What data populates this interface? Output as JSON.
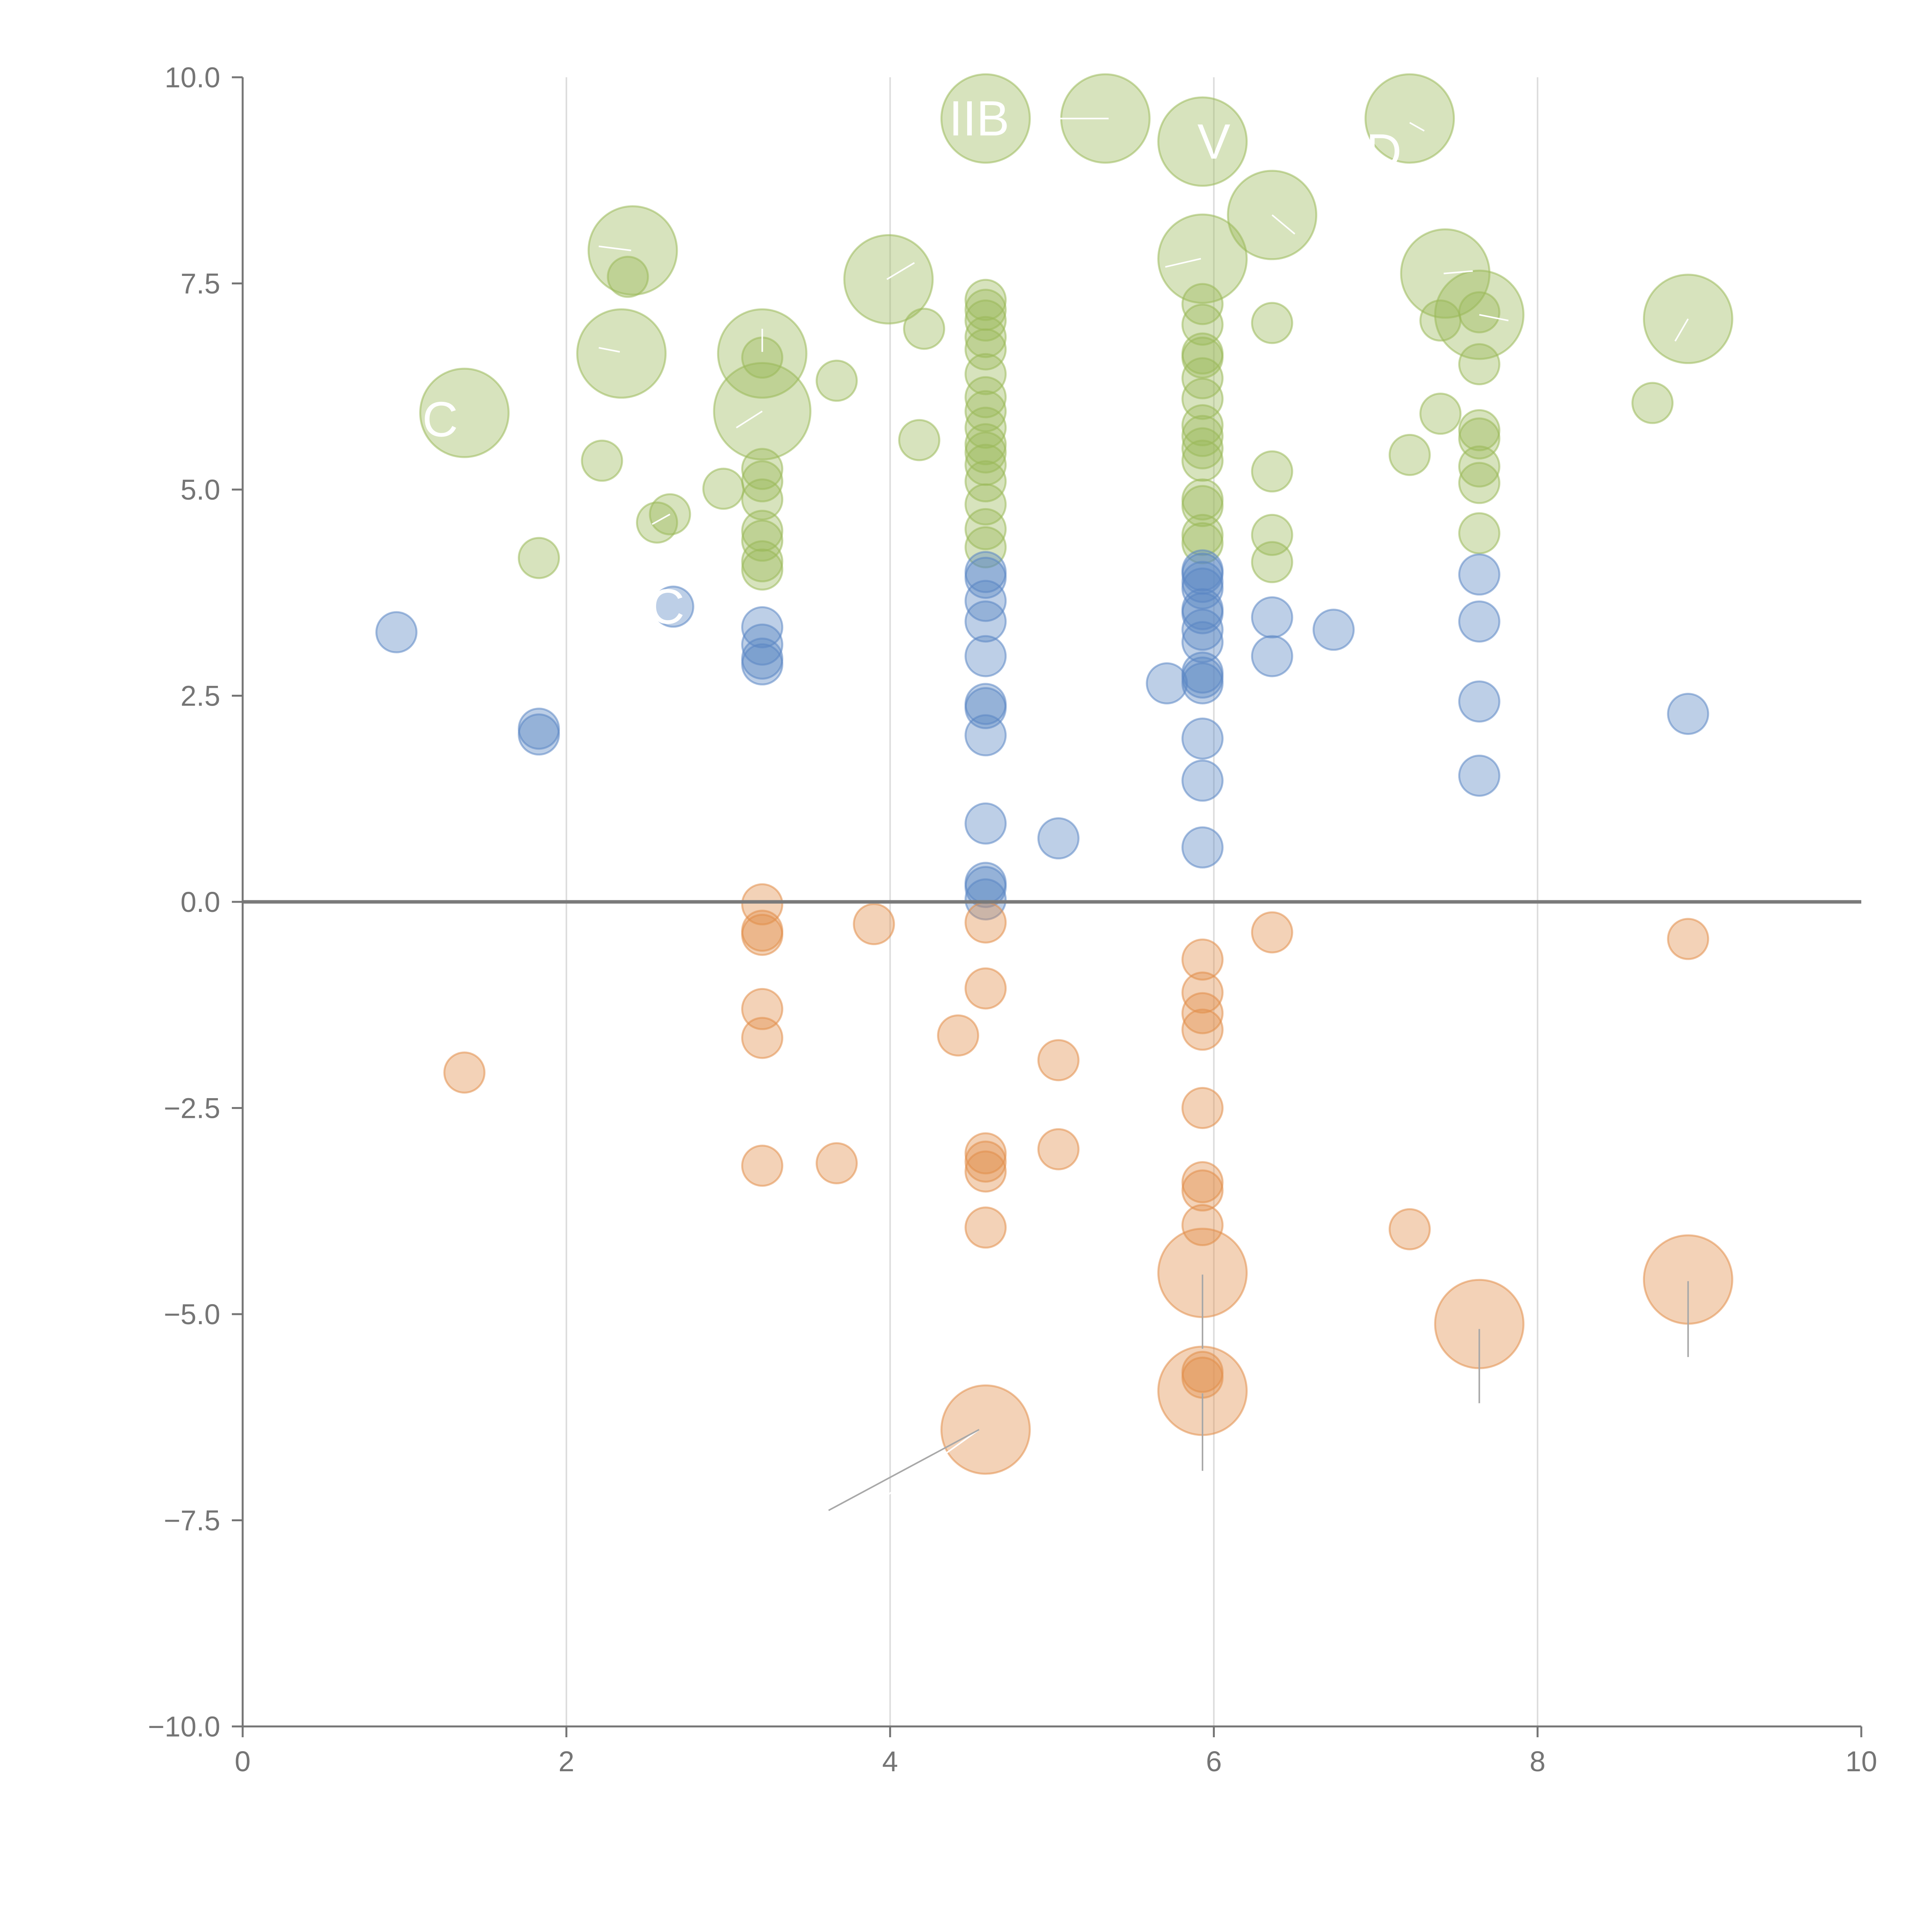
{
  "chart_data": {
    "type": "scatter",
    "title": "",
    "xlabel": "",
    "ylabel": "",
    "xlim": [
      0,
      10
    ],
    "ylim": [
      -10,
      10
    ],
    "x_ticks": [
      0,
      2,
      4,
      6,
      8,
      10
    ],
    "x_tick_labels": [
      "0",
      "2",
      "4",
      "6",
      "8",
      "10"
    ],
    "y_ticks": [
      -10,
      -7.5,
      -5,
      -2.5,
      0,
      2.5,
      5,
      7.5,
      10
    ],
    "y_tick_labels": [
      "−10.0",
      "−7.5",
      "−5.0",
      "−2.5",
      "0.0",
      "2.5",
      "5.0",
      "7.5",
      "10.0"
    ],
    "grid": {
      "x": [
        2,
        4,
        6,
        8
      ],
      "y": false
    },
    "zero_line": 0,
    "legend": "none",
    "colors": {
      "green": "#9aba59",
      "blue": "#5b86c4",
      "orange": "#e18e4b",
      "axis": "#757575",
      "grid": "#dcdcdc",
      "zero": "#7a7a7a",
      "label": "#ffffff"
    },
    "series": [
      {
        "name": "green",
        "color": "#9aba59",
        "points": [
          {
            "x": 1.37,
            "y": 5.93,
            "size": 2.2,
            "label": "C",
            "lx": 1.22,
            "ly": 5.85
          },
          {
            "x": 1.83,
            "y": 4.17,
            "size": 1
          },
          {
            "x": 2.22,
            "y": 5.35,
            "size": 1
          },
          {
            "x": 2.34,
            "y": 6.65,
            "size": 2.2
          },
          {
            "x": 2.38,
            "y": 7.58,
            "size": 1
          },
          {
            "x": 2.41,
            "y": 7.9,
            "size": 2.2
          },
          {
            "x": 2.56,
            "y": 4.6,
            "size": 1
          },
          {
            "x": 2.64,
            "y": 4.7,
            "size": 1
          },
          {
            "x": 2.97,
            "y": 5.01,
            "size": 1
          },
          {
            "x": 3.21,
            "y": 4.03,
            "size": 1
          },
          {
            "x": 3.21,
            "y": 4.13,
            "size": 1
          },
          {
            "x": 3.21,
            "y": 4.38,
            "size": 1
          },
          {
            "x": 3.21,
            "y": 4.5,
            "size": 1
          },
          {
            "x": 3.21,
            "y": 4.88,
            "size": 1
          },
          {
            "x": 3.21,
            "y": 5.1,
            "size": 1
          },
          {
            "x": 3.21,
            "y": 5.25,
            "size": 1
          },
          {
            "x": 3.21,
            "y": 5.95,
            "size": 2.4
          },
          {
            "x": 3.21,
            "y": 6.6,
            "size": 1
          },
          {
            "x": 3.21,
            "y": 6.65,
            "size": 2.2
          },
          {
            "x": 3.67,
            "y": 6.32,
            "size": 1
          },
          {
            "x": 3.99,
            "y": 7.55,
            "size": 2.2
          },
          {
            "x": 4.18,
            "y": 5.6,
            "size": 1
          },
          {
            "x": 4.21,
            "y": 6.95,
            "size": 1
          },
          {
            "x": 4.59,
            "y": 4.3,
            "size": 1
          },
          {
            "x": 4.59,
            "y": 4.52,
            "size": 1
          },
          {
            "x": 4.59,
            "y": 4.82,
            "size": 1
          },
          {
            "x": 4.59,
            "y": 5.1,
            "size": 1
          },
          {
            "x": 4.59,
            "y": 5.3,
            "size": 1
          },
          {
            "x": 4.59,
            "y": 5.45,
            "size": 1
          },
          {
            "x": 4.59,
            "y": 5.55,
            "size": 1
          },
          {
            "x": 4.59,
            "y": 5.75,
            "size": 1
          },
          {
            "x": 4.59,
            "y": 5.95,
            "size": 1
          },
          {
            "x": 4.59,
            "y": 6.12,
            "size": 1
          },
          {
            "x": 4.59,
            "y": 6.4,
            "size": 1
          },
          {
            "x": 4.59,
            "y": 6.7,
            "size": 1
          },
          {
            "x": 4.59,
            "y": 6.85,
            "size": 1
          },
          {
            "x": 4.59,
            "y": 7.05,
            "size": 1
          },
          {
            "x": 4.59,
            "y": 7.18,
            "size": 1
          },
          {
            "x": 4.59,
            "y": 7.3,
            "size": 1
          },
          {
            "x": 4.59,
            "y": 9.5,
            "size": 2.2,
            "label": "IIB",
            "lx": 4.55,
            "ly": 9.5
          },
          {
            "x": 5.33,
            "y": 9.5,
            "size": 2.2
          },
          {
            "x": 5.93,
            "y": 4.35,
            "size": 1
          },
          {
            "x": 5.93,
            "y": 4.45,
            "size": 1
          },
          {
            "x": 5.93,
            "y": 4.8,
            "size": 1
          },
          {
            "x": 5.93,
            "y": 4.88,
            "size": 1
          },
          {
            "x": 5.93,
            "y": 5.35,
            "size": 1
          },
          {
            "x": 5.93,
            "y": 5.5,
            "size": 1
          },
          {
            "x": 5.93,
            "y": 5.65,
            "size": 1
          },
          {
            "x": 5.93,
            "y": 5.78,
            "size": 1
          },
          {
            "x": 5.93,
            "y": 6.1,
            "size": 1
          },
          {
            "x": 5.93,
            "y": 6.35,
            "size": 1
          },
          {
            "x": 5.93,
            "y": 6.6,
            "size": 1
          },
          {
            "x": 5.93,
            "y": 6.65,
            "size": 1
          },
          {
            "x": 5.93,
            "y": 7.0,
            "size": 1
          },
          {
            "x": 5.93,
            "y": 7.25,
            "size": 1
          },
          {
            "x": 5.93,
            "y": 7.8,
            "size": 2.2
          },
          {
            "x": 5.93,
            "y": 9.22,
            "size": 2.2,
            "label": "V",
            "lx": 6.0,
            "ly": 9.22
          },
          {
            "x": 6.36,
            "y": 4.12,
            "size": 1
          },
          {
            "x": 6.36,
            "y": 4.45,
            "size": 1
          },
          {
            "x": 6.36,
            "y": 5.22,
            "size": 1
          },
          {
            "x": 6.36,
            "y": 7.02,
            "size": 1
          },
          {
            "x": 6.36,
            "y": 8.33,
            "size": 2.2
          },
          {
            "x": 7.21,
            "y": 5.42,
            "size": 1
          },
          {
            "x": 7.21,
            "y": 9.5,
            "size": 2.2,
            "label": "D",
            "lx": 7.05,
            "ly": 9.1
          },
          {
            "x": 7.4,
            "y": 7.05,
            "size": 1
          },
          {
            "x": 7.4,
            "y": 5.92,
            "size": 1
          },
          {
            "x": 7.43,
            "y": 7.62,
            "size": 2.2
          },
          {
            "x": 7.64,
            "y": 4.47,
            "size": 1
          },
          {
            "x": 7.64,
            "y": 5.08,
            "size": 1
          },
          {
            "x": 7.64,
            "y": 5.28,
            "size": 1
          },
          {
            "x": 7.64,
            "y": 5.62,
            "size": 1
          },
          {
            "x": 7.64,
            "y": 5.72,
            "size": 1
          },
          {
            "x": 7.64,
            "y": 6.52,
            "size": 1
          },
          {
            "x": 7.64,
            "y": 7.15,
            "size": 1
          },
          {
            "x": 7.64,
            "y": 7.12,
            "size": 2.2
          },
          {
            "x": 8.71,
            "y": 6.05,
            "size": 1
          },
          {
            "x": 8.93,
            "y": 7.07,
            "size": 2.2
          }
        ]
      },
      {
        "name": "blue",
        "color": "#5b86c4",
        "points": [
          {
            "x": 0.95,
            "y": 3.27,
            "size": 1
          },
          {
            "x": 1.83,
            "y": 2.03,
            "size": 1
          },
          {
            "x": 1.83,
            "y": 2.1,
            "size": 1
          },
          {
            "x": 2.66,
            "y": 3.58,
            "size": 1,
            "label": "C",
            "lx": 2.62,
            "ly": 3.58
          },
          {
            "x": 3.21,
            "y": 2.88,
            "size": 1
          },
          {
            "x": 3.21,
            "y": 2.95,
            "size": 1
          },
          {
            "x": 3.21,
            "y": 3.12,
            "size": 1
          },
          {
            "x": 3.21,
            "y": 3.33,
            "size": 1
          },
          {
            "x": 4.59,
            "y": 0.03,
            "size": 1
          },
          {
            "x": 4.59,
            "y": 0.18,
            "size": 1
          },
          {
            "x": 4.59,
            "y": 0.23,
            "size": 1
          },
          {
            "x": 4.59,
            "y": 0.95,
            "size": 1
          },
          {
            "x": 4.59,
            "y": 2.02,
            "size": 1
          },
          {
            "x": 4.59,
            "y": 2.35,
            "size": 1
          },
          {
            "x": 4.59,
            "y": 2.4,
            "size": 1
          },
          {
            "x": 4.59,
            "y": 2.98,
            "size": 1
          },
          {
            "x": 4.59,
            "y": 3.4,
            "size": 1
          },
          {
            "x": 4.59,
            "y": 3.65,
            "size": 1
          },
          {
            "x": 4.59,
            "y": 3.93,
            "size": 1
          },
          {
            "x": 4.59,
            "y": 4.0,
            "size": 1
          },
          {
            "x": 5.04,
            "y": 0.77,
            "size": 1
          },
          {
            "x": 5.71,
            "y": 2.65,
            "size": 1
          },
          {
            "x": 5.93,
            "y": 0.66,
            "size": 1
          },
          {
            "x": 5.93,
            "y": 1.47,
            "size": 1
          },
          {
            "x": 5.93,
            "y": 1.98,
            "size": 1
          },
          {
            "x": 5.93,
            "y": 2.65,
            "size": 1
          },
          {
            "x": 5.93,
            "y": 2.72,
            "size": 1
          },
          {
            "x": 5.93,
            "y": 2.78,
            "size": 1
          },
          {
            "x": 5.93,
            "y": 3.15,
            "size": 1
          },
          {
            "x": 5.93,
            "y": 3.3,
            "size": 1
          },
          {
            "x": 5.93,
            "y": 3.5,
            "size": 1
          },
          {
            "x": 5.93,
            "y": 3.55,
            "size": 1
          },
          {
            "x": 5.93,
            "y": 3.8,
            "size": 1
          },
          {
            "x": 5.93,
            "y": 3.88,
            "size": 1
          },
          {
            "x": 5.93,
            "y": 3.98,
            "size": 1
          },
          {
            "x": 5.93,
            "y": 4.02,
            "size": 1
          },
          {
            "x": 6.36,
            "y": 2.98,
            "size": 1
          },
          {
            "x": 6.36,
            "y": 3.45,
            "size": 1
          },
          {
            "x": 6.74,
            "y": 3.3,
            "size": 1
          },
          {
            "x": 7.64,
            "y": 1.53,
            "size": 1
          },
          {
            "x": 7.64,
            "y": 2.43,
            "size": 1
          },
          {
            "x": 7.64,
            "y": 3.4,
            "size": 1
          },
          {
            "x": 7.64,
            "y": 3.97,
            "size": 1
          },
          {
            "x": 8.93,
            "y": 2.28,
            "size": 1
          }
        ]
      },
      {
        "name": "orange",
        "color": "#e18e4b",
        "points": [
          {
            "x": 1.37,
            "y": -2.07,
            "size": 1
          },
          {
            "x": 3.21,
            "y": -0.03,
            "size": 1
          },
          {
            "x": 3.21,
            "y": -0.35,
            "size": 1
          },
          {
            "x": 3.21,
            "y": -0.4,
            "size": 1
          },
          {
            "x": 3.21,
            "y": -1.3,
            "size": 1
          },
          {
            "x": 3.21,
            "y": -1.65,
            "size": 1
          },
          {
            "x": 3.21,
            "y": -3.2,
            "size": 1
          },
          {
            "x": 3.67,
            "y": -3.17,
            "size": 1
          },
          {
            "x": 3.9,
            "y": -0.27,
            "size": 1
          },
          {
            "x": 4.42,
            "y": -1.62,
            "size": 1
          },
          {
            "x": 4.59,
            "y": -0.25,
            "size": 1
          },
          {
            "x": 4.59,
            "y": -1.05,
            "size": 1
          },
          {
            "x": 4.59,
            "y": -3.05,
            "size": 1
          },
          {
            "x": 4.59,
            "y": -3.15,
            "size": 1
          },
          {
            "x": 4.59,
            "y": -3.27,
            "size": 1
          },
          {
            "x": 4.59,
            "y": -3.95,
            "size": 1
          },
          {
            "x": 4.59,
            "y": -6.4,
            "size": 2.2
          },
          {
            "x": 5.04,
            "y": -1.92,
            "size": 1
          },
          {
            "x": 5.04,
            "y": -3.0,
            "size": 1
          },
          {
            "x": 5.93,
            "y": -0.7,
            "size": 1
          },
          {
            "x": 5.93,
            "y": -1.1,
            "size": 1
          },
          {
            "x": 5.93,
            "y": -1.35,
            "size": 1
          },
          {
            "x": 5.93,
            "y": -1.55,
            "size": 1
          },
          {
            "x": 5.93,
            "y": -2.5,
            "size": 1
          },
          {
            "x": 5.93,
            "y": -3.4,
            "size": 1
          },
          {
            "x": 5.93,
            "y": -3.5,
            "size": 1
          },
          {
            "x": 5.93,
            "y": -3.92,
            "size": 1
          },
          {
            "x": 5.93,
            "y": -4.5,
            "size": 2.2
          },
          {
            "x": 5.93,
            "y": -5.7,
            "size": 1
          },
          {
            "x": 5.93,
            "y": -5.77,
            "size": 1
          },
          {
            "x": 5.93,
            "y": -5.93,
            "size": 2.2
          },
          {
            "x": 6.36,
            "y": -0.37,
            "size": 1
          },
          {
            "x": 7.21,
            "y": -3.97,
            "size": 1
          },
          {
            "x": 7.64,
            "y": -5.12,
            "size": 2.2
          },
          {
            "x": 8.93,
            "y": -0.45,
            "size": 1
          },
          {
            "x": 8.93,
            "y": -4.58,
            "size": 2.2
          }
        ]
      }
    ],
    "leader_lines": [
      {
        "color": "white",
        "x1": 4.55,
        "y1": -6.4,
        "x2": 3.98,
        "y2": -7.2
      },
      {
        "color": "gray",
        "x1": 4.55,
        "y1": -6.4,
        "x2": 3.62,
        "y2": -7.38
      },
      {
        "color": "gray",
        "x1": 5.93,
        "y1": -4.52,
        "x2": 5.93,
        "y2": -5.42
      },
      {
        "color": "gray",
        "x1": 5.93,
        "y1": -5.96,
        "x2": 5.93,
        "y2": -6.9
      },
      {
        "color": "gray",
        "x1": 7.64,
        "y1": -5.18,
        "x2": 7.64,
        "y2": -6.08
      },
      {
        "color": "gray",
        "x1": 8.93,
        "y1": -4.6,
        "x2": 8.93,
        "y2": -5.52
      },
      {
        "color": "white",
        "x1": 5.35,
        "y1": 9.5,
        "x2": 5.0,
        "y2": 9.5
      },
      {
        "color": "white",
        "x1": 2.4,
        "y1": 7.9,
        "x2": 2.2,
        "y2": 7.95
      },
      {
        "color": "white",
        "x1": 2.33,
        "y1": 6.67,
        "x2": 2.2,
        "y2": 6.72
      },
      {
        "color": "white",
        "x1": 3.21,
        "y1": 6.67,
        "x2": 3.21,
        "y2": 6.95
      },
      {
        "color": "white",
        "x1": 3.21,
        "y1": 5.95,
        "x2": 3.05,
        "y2": 5.75
      },
      {
        "color": "white",
        "x1": 3.98,
        "y1": 7.55,
        "x2": 4.15,
        "y2": 7.75
      },
      {
        "color": "white",
        "x1": 5.92,
        "y1": 7.8,
        "x2": 5.7,
        "y2": 7.7
      },
      {
        "color": "white",
        "x1": 6.36,
        "y1": 8.33,
        "x2": 6.5,
        "y2": 8.1
      },
      {
        "color": "white",
        "x1": 7.42,
        "y1": 7.62,
        "x2": 7.6,
        "y2": 7.65
      },
      {
        "color": "white",
        "x1": 7.64,
        "y1": 7.12,
        "x2": 7.82,
        "y2": 7.05
      },
      {
        "color": "white",
        "x1": 8.93,
        "y1": 7.07,
        "x2": 8.85,
        "y2": 6.8
      },
      {
        "color": "white",
        "x1": 7.21,
        "y1": 9.45,
        "x2": 7.3,
        "y2": 9.35
      },
      {
        "color": "white",
        "x1": 2.64,
        "y1": 4.7,
        "x2": 2.53,
        "y2": 4.58
      }
    ]
  }
}
